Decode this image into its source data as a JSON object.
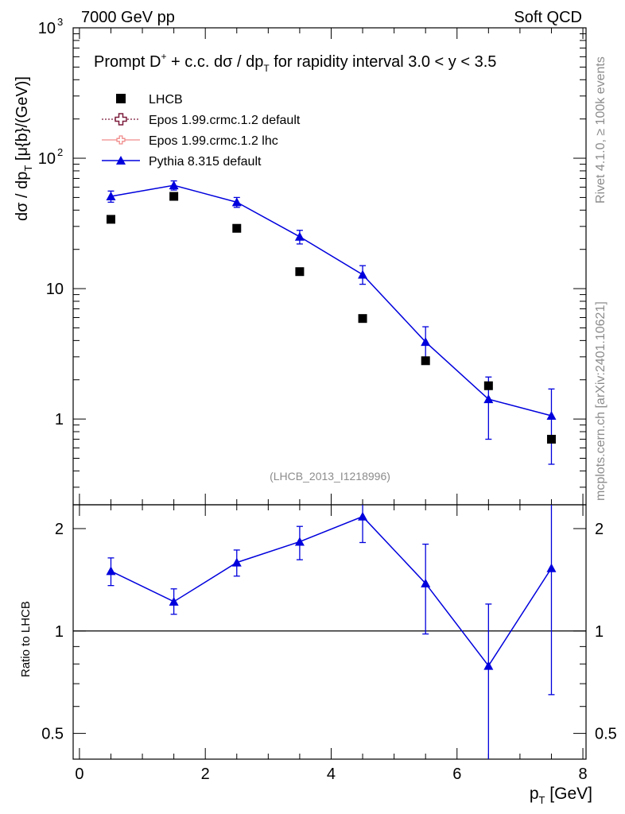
{
  "header": {
    "left": "7000 GeV pp",
    "right": "Soft QCD"
  },
  "side": {
    "top": "Rivet 4.1.0, ≥ 100k events",
    "bottom": "mcplots.cern.ch [arXiv:2401.10621]"
  },
  "chart_data": {
    "type": "line",
    "title_main": "Prompt D",
    "title_sup": "+",
    "title_rest": " + c.c.  dσ / dp",
    "title_sub": "T",
    "title_tail": " for rapidity interval 3.0 < y < 3.5",
    "ylabel_main": "dσ / dp",
    "ylabel_sub": "T",
    "ylabel_tail": " [μ{b}/(GeV)]",
    "xlabel_main": "p",
    "xlabel_sub": "T",
    "xlabel_tail": " [GeV]",
    "ratio_ylabel": "Ratio to LHCB",
    "analysis_id": "(LHCB_2013_I1218996)",
    "xlim": [
      -0.1,
      8.05
    ],
    "ylim_main": [
      0.22,
      1000
    ],
    "ylim_ratio": [
      0.42,
      2.35
    ],
    "x_ticks": [
      "0",
      "2",
      "4",
      "6",
      "8"
    ],
    "x_tick_values": [
      0,
      2,
      4,
      6,
      8
    ],
    "y_ticks_main": [
      "1",
      "10",
      "10",
      "10"
    ],
    "y_ticks_main_sup": [
      "",
      "",
      "2",
      "3"
    ],
    "y_tick_values_main": [
      1,
      10,
      100,
      1000
    ],
    "y_ticks_ratio": [
      "0.5",
      "1",
      "2"
    ],
    "y_tick_values_ratio": [
      0.5,
      1,
      2
    ],
    "legend": [
      {
        "label": "LHCB",
        "color": "#000000",
        "marker": "square"
      },
      {
        "label": "Epos 1.99.crmc.1.2 default",
        "color": "#7b1b3a",
        "marker": "cross"
      },
      {
        "label": "Epos 1.99.crmc.1.2 lhc",
        "color": "#f08a8a",
        "marker": "cross-small"
      },
      {
        "label": "Pythia 8.315 default",
        "color": "#0000dd",
        "marker": "triangle"
      }
    ],
    "data_series": {
      "name": "LHCB",
      "x": [
        0.5,
        1.5,
        2.5,
        3.5,
        4.5,
        5.5,
        6.5,
        7.5
      ],
      "y": [
        34,
        51,
        29,
        13.5,
        5.9,
        2.8,
        1.8,
        0.7
      ]
    },
    "mc_series": {
      "name": "Pythia 8.315 default",
      "x": [
        0.5,
        1.5,
        2.5,
        3.5,
        4.5,
        5.5,
        6.5,
        7.5
      ],
      "y": [
        51,
        62,
        46,
        25,
        12.8,
        3.9,
        1.42,
        1.06
      ],
      "y_low": [
        46,
        57,
        42,
        22,
        10.8,
        2.9,
        0.7,
        0.45
      ],
      "y_high": [
        56,
        67,
        50,
        28,
        15,
        5.1,
        2.1,
        1.7
      ]
    },
    "ratio_series": {
      "x": [
        0.5,
        1.5,
        2.5,
        3.5,
        4.5,
        5.5,
        6.5,
        7.5
      ],
      "y": [
        1.5,
        1.22,
        1.59,
        1.83,
        2.17,
        1.38,
        0.79,
        1.53
      ],
      "y_low": [
        1.36,
        1.12,
        1.45,
        1.62,
        1.82,
        0.98,
        0.4,
        0.65
      ],
      "y_high": [
        1.64,
        1.33,
        1.73,
        2.03,
        2.42,
        1.8,
        1.2,
        2.5
      ]
    },
    "reference_line": 1
  }
}
